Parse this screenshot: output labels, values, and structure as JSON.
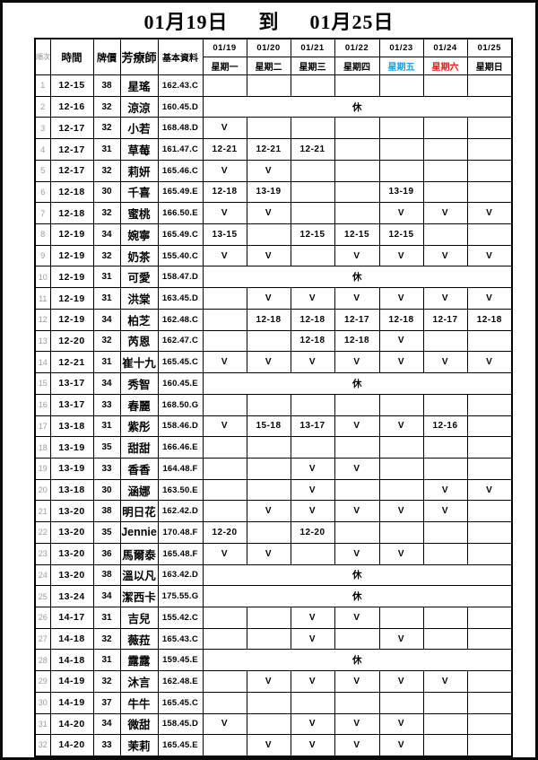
{
  "page": {
    "title": {
      "from": "01月19日",
      "sep": "到",
      "to": "01月25日"
    }
  },
  "colors": {
    "weekday_friday_blue": "#1e9fe4",
    "weekday_saturday_red": "#e62019",
    "weekday_default": "#000000",
    "grid": "#000000",
    "seq_gray": "#9b9b9b"
  },
  "table": {
    "headers": {
      "seq": "順次",
      "time": "時間",
      "price": "牌價",
      "therapist": "芳療師",
      "info": "基本資料"
    },
    "days": [
      {
        "date": "01/19",
        "weekday": "星期一",
        "color": "#000000"
      },
      {
        "date": "01/20",
        "weekday": "星期二",
        "color": "#000000"
      },
      {
        "date": "01/21",
        "weekday": "星期三",
        "color": "#000000"
      },
      {
        "date": "01/22",
        "weekday": "星期四",
        "color": "#000000"
      },
      {
        "date": "01/23",
        "weekday": "星期五",
        "color": "#1e9fe4"
      },
      {
        "date": "01/24",
        "weekday": "星期六",
        "color": "#e62019"
      },
      {
        "date": "01/25",
        "weekday": "星期日",
        "color": "#000000"
      }
    ],
    "rest_label": "休",
    "check_mark": "V",
    "rows": [
      {
        "no": "1",
        "time": "12-15",
        "price": "38",
        "name": "星瑤",
        "info": "162.43.C",
        "days": [
          "",
          "",
          "",
          "",
          "",
          "",
          ""
        ]
      },
      {
        "no": "2",
        "time": "12-16",
        "price": "32",
        "name": "涼涼",
        "info": "160.45.D",
        "rest": true
      },
      {
        "no": "3",
        "time": "12-17",
        "price": "32",
        "name": "小若",
        "info": "168.48.D",
        "days": [
          "V",
          "",
          "",
          "",
          "",
          "",
          ""
        ]
      },
      {
        "no": "4",
        "time": "12-17",
        "price": "31",
        "name": "草莓",
        "info": "161.47.C",
        "days": [
          "12-21",
          "12-21",
          "12-21",
          "",
          "",
          "",
          ""
        ]
      },
      {
        "no": "5",
        "time": "12-17",
        "price": "32",
        "name": "莉妍",
        "info": "165.46.C",
        "days": [
          "V",
          "V",
          "",
          "",
          "",
          "",
          ""
        ]
      },
      {
        "no": "6",
        "time": "12-18",
        "price": "30",
        "name": "千喜",
        "info": "165.49.E",
        "days": [
          "12-18",
          "13-19",
          "",
          "",
          "13-19",
          "",
          ""
        ]
      },
      {
        "no": "7",
        "time": "12-18",
        "price": "32",
        "name": "蜜桃",
        "info": "166.50.E",
        "days": [
          "V",
          "V",
          "",
          "",
          "V",
          "V",
          "V"
        ]
      },
      {
        "no": "8",
        "time": "12-19",
        "price": "34",
        "name": "婉寧",
        "info": "165.49.C",
        "days": [
          "13-15",
          "",
          "12-15",
          "12-15",
          "12-15",
          "",
          ""
        ]
      },
      {
        "no": "9",
        "time": "12-19",
        "price": "32",
        "name": "奶茶",
        "info": "155.40.C",
        "days": [
          "V",
          "V",
          "",
          "V",
          "V",
          "V",
          "V"
        ]
      },
      {
        "no": "10",
        "time": "12-19",
        "price": "31",
        "name": "可愛",
        "info": "158.47.D",
        "rest": true
      },
      {
        "no": "11",
        "time": "12-19",
        "price": "31",
        "name": "洪棠",
        "info": "163.45.D",
        "days": [
          "",
          "V",
          "V",
          "V",
          "V",
          "V",
          "V"
        ]
      },
      {
        "no": "12",
        "time": "12-19",
        "price": "34",
        "name": "柏芝",
        "info": "162.48.C",
        "days": [
          "",
          "12-18",
          "12-18",
          "12-17",
          "12-18",
          "12-17",
          "12-18"
        ]
      },
      {
        "no": "13",
        "time": "12-20",
        "price": "32",
        "name": "芮恩",
        "info": "162.47.C",
        "days": [
          "",
          "",
          "12-18",
          "12-18",
          "V",
          "",
          ""
        ]
      },
      {
        "no": "14",
        "time": "12-21",
        "price": "31",
        "name": "崔十九",
        "info": "165.45.C",
        "days": [
          "V",
          "V",
          "V",
          "V",
          "V",
          "V",
          "V"
        ]
      },
      {
        "no": "15",
        "time": "13-17",
        "price": "34",
        "name": "秀智",
        "info": "160.45.E",
        "rest": true
      },
      {
        "no": "16",
        "time": "13-17",
        "price": "33",
        "name": "春麗",
        "info": "168.50.G",
        "days": [
          "",
          "",
          "",
          "",
          "",
          "",
          ""
        ]
      },
      {
        "no": "17",
        "time": "13-18",
        "price": "31",
        "name": "紫彤",
        "info": "158.46.D",
        "days": [
          "V",
          "15-18",
          "13-17",
          "V",
          "V",
          "12-16",
          ""
        ]
      },
      {
        "no": "18",
        "time": "13-19",
        "price": "35",
        "name": "甜甜",
        "info": "166.46.E",
        "days": [
          "",
          "",
          "",
          "",
          "",
          "",
          ""
        ]
      },
      {
        "no": "19",
        "time": "13-19",
        "price": "33",
        "name": "香香",
        "info": "164.48.F",
        "days": [
          "",
          "",
          "V",
          "V",
          "",
          "",
          ""
        ]
      },
      {
        "no": "20",
        "time": "13-18",
        "price": "30",
        "name": "涵娜",
        "info": "163.50.E",
        "days": [
          "",
          "",
          "V",
          "",
          "",
          "V",
          "V"
        ]
      },
      {
        "no": "21",
        "time": "13-20",
        "price": "38",
        "name": "明日花",
        "info": "162.42.D",
        "days": [
          "",
          "V",
          "V",
          "V",
          "V",
          "V",
          ""
        ]
      },
      {
        "no": "22",
        "time": "13-20",
        "price": "35",
        "name": "Jennie",
        "info": "170.48.F",
        "days": [
          "12-20",
          "",
          "12-20",
          "",
          "",
          "",
          ""
        ]
      },
      {
        "no": "23",
        "time": "13-20",
        "price": "36",
        "name": "馬爾泰",
        "info": "165.48.F",
        "days": [
          "V",
          "V",
          "",
          "V",
          "V",
          "",
          ""
        ]
      },
      {
        "no": "24",
        "time": "13-20",
        "price": "38",
        "name": "溫以凡",
        "info": "163.42.D",
        "rest": true
      },
      {
        "no": "25",
        "time": "13-24",
        "price": "34",
        "name": "潔西卡",
        "info": "175.55.G",
        "rest": true
      },
      {
        "no": "26",
        "time": "14-17",
        "price": "31",
        "name": "吉兒",
        "info": "155.42.C",
        "days": [
          "",
          "",
          "V",
          "V",
          "",
          "",
          ""
        ]
      },
      {
        "no": "27",
        "time": "14-18",
        "price": "32",
        "name": "薇菈",
        "info": "165.43.C",
        "days": [
          "",
          "",
          "V",
          "",
          "V",
          "",
          ""
        ]
      },
      {
        "no": "28",
        "time": "14-18",
        "price": "31",
        "name": "露露",
        "info": "159.45.E",
        "rest": true
      },
      {
        "no": "29",
        "time": "14-19",
        "price": "32",
        "name": "沐言",
        "info": "162.48.E",
        "days": [
          "",
          "V",
          "V",
          "V",
          "V",
          "V",
          ""
        ]
      },
      {
        "no": "30",
        "time": "14-19",
        "price": "37",
        "name": "牛牛",
        "info": "165.45.C",
        "days": [
          "",
          "",
          "",
          "",
          "",
          "",
          ""
        ]
      },
      {
        "no": "31",
        "time": "14-20",
        "price": "34",
        "name": "微甜",
        "info": "158.45.D",
        "days": [
          "V",
          "",
          "V",
          "V",
          "V",
          "",
          ""
        ]
      },
      {
        "no": "32",
        "time": "14-20",
        "price": "33",
        "name": "茉莉",
        "info": "165.45.E",
        "days": [
          "",
          "V",
          "V",
          "V",
          "V",
          "",
          ""
        ]
      }
    ]
  }
}
